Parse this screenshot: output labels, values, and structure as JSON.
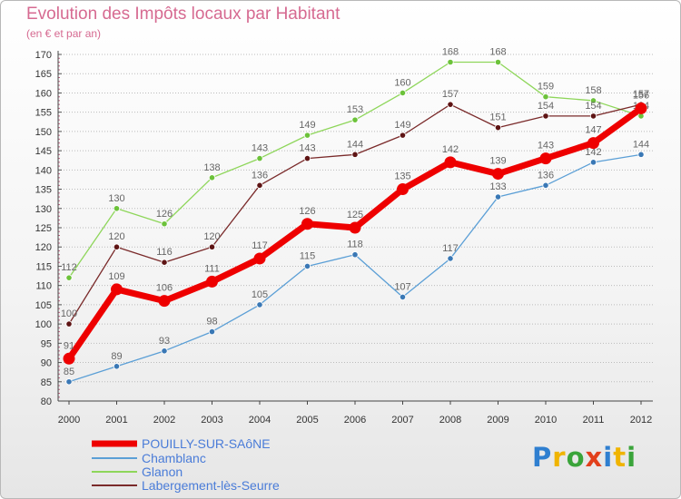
{
  "title": "Evolution des Impôts locaux par Habitant",
  "subtitle": "(en € et par an)",
  "logo": {
    "text": "Proxiti",
    "letters": [
      "P",
      "r",
      "o",
      "x",
      "i",
      "t",
      "i"
    ],
    "colors": [
      "#2f7fd0",
      "#f0b400",
      "#3aa43a",
      "#e2401c",
      "#2f7fd0",
      "#f0b400",
      "#3aa43a"
    ]
  },
  "chart_data": {
    "type": "line",
    "title": "Evolution des Impôts locaux par Habitant",
    "subtitle": "(en € et par an)",
    "xlabel": "",
    "ylabel": "",
    "ylim": [
      80,
      170
    ],
    "grid": "horizontal dotted",
    "legend_position": "bottom-left",
    "categories": [
      "2000",
      "2001",
      "2002",
      "2003",
      "2004",
      "2005",
      "2006",
      "2007",
      "2008",
      "2009",
      "2010",
      "2011",
      "2012"
    ],
    "yticks": [
      "80",
      "85",
      "90",
      "95",
      "100",
      "105",
      "110",
      "115",
      "120",
      "125",
      "130",
      "135",
      "140",
      "145",
      "150",
      "155",
      "160",
      "165",
      "170"
    ],
    "series": [
      {
        "name": "Chamblanc",
        "color": "#5b9fd6",
        "dot": "#3a78b5",
        "values": [
          85,
          89,
          93,
          98,
          105,
          115,
          118,
          107,
          117,
          133,
          136,
          142,
          144
        ],
        "labels": [
          "85",
          "89",
          "93",
          "98",
          "105",
          "115",
          "118",
          "107",
          "117",
          "133",
          "136",
          "142",
          "144"
        ]
      },
      {
        "name": "Glanon",
        "color": "#8ed65a",
        "dot": "#6cc23a",
        "values": [
          112,
          130,
          126,
          138,
          143,
          149,
          153,
          160,
          168,
          168,
          159,
          158,
          154
        ],
        "labels": [
          "112",
          "130",
          "126",
          "138",
          "143",
          "149",
          "153",
          "160",
          "168",
          "168",
          "159",
          "158",
          "154"
        ]
      },
      {
        "name": "Labergement-lès-Seurre",
        "color": "#7a2a2a",
        "dot": "#5e1414",
        "values": [
          100,
          120,
          116,
          120,
          136,
          143,
          144,
          149,
          157,
          151,
          154,
          154,
          157
        ],
        "labels": [
          "100",
          "120",
          "116",
          "120",
          "136",
          "143",
          "144",
          "149",
          "157",
          "151",
          "154",
          "154",
          "157"
        ]
      },
      {
        "name": "POUILLY-SUR-SAôNE",
        "color": "#ee0000",
        "dot": "#ee0000",
        "values": [
          91,
          109,
          106,
          111,
          117,
          126,
          125,
          135,
          142,
          139,
          143,
          147,
          156
        ],
        "labels": [
          "91",
          "109",
          "106",
          "111",
          "117",
          "126",
          "125",
          "135",
          "142",
          "139",
          "143",
          "147",
          "156"
        ]
      }
    ],
    "legend": [
      "POUILLY-SUR-SAôNE",
      "Chamblanc",
      "Glanon",
      "Labergement-lès-Seurre"
    ]
  }
}
